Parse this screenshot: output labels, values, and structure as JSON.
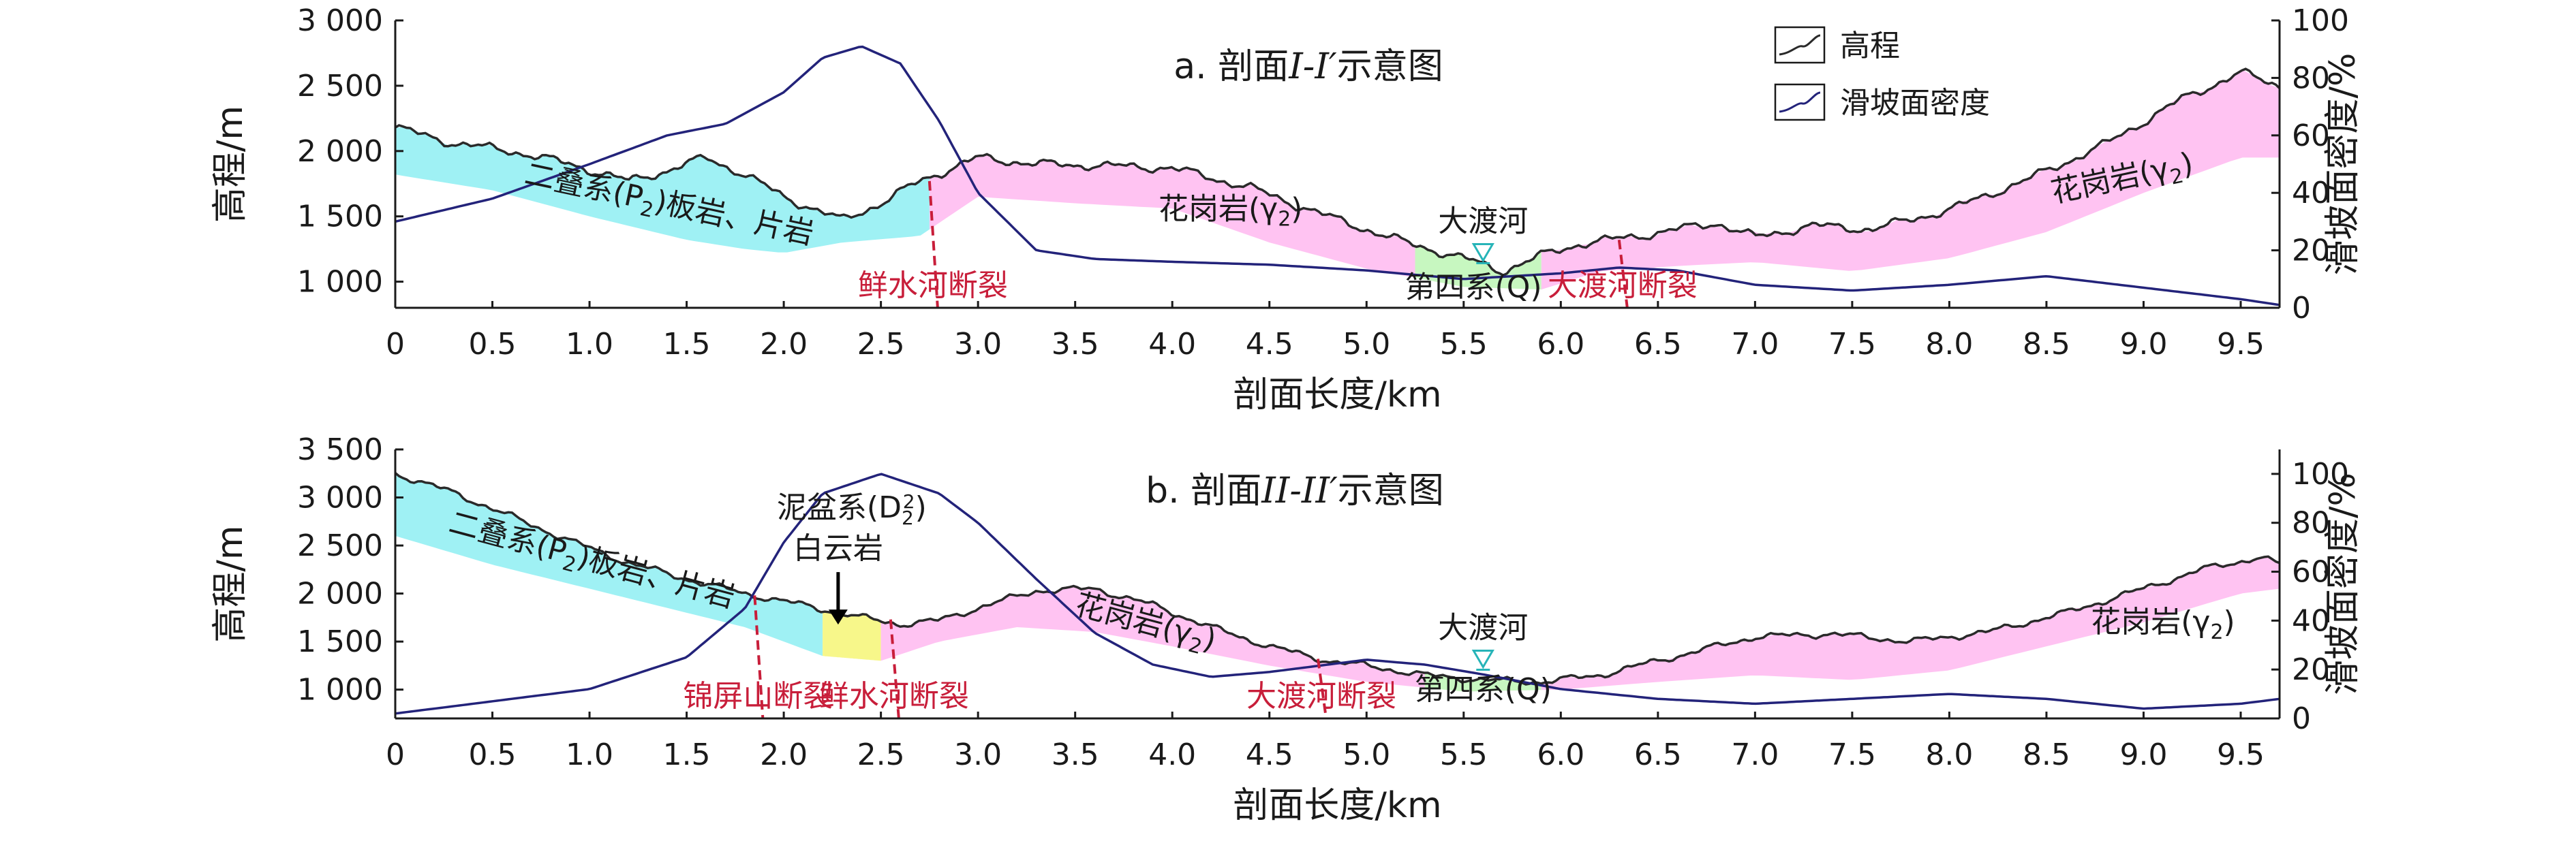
{
  "colors": {
    "cyan": "#9ff1f4",
    "pink": "#ffc3f2",
    "green": "#c7f7c0",
    "yellow": "#f7f78a",
    "fault": "#c81e3a",
    "river": "#27b4b8",
    "elevation": "#2a2a2a",
    "density": "#23237a"
  },
  "legend": {
    "elevation_label": "高程",
    "density_label": "滑坡面密度"
  },
  "chart_data": [
    {
      "type": "line",
      "title": "a. 剖面I-I′示意图",
      "title_parts": {
        "prefix": "a. 剖面",
        "italic": "I-I′",
        "suffix": "示意图"
      },
      "xlabel": "剖面长度/km",
      "ylabel": "高程/m",
      "y2label": "滑坡面密度/%",
      "xlim": [
        0,
        9.7
      ],
      "ylim": [
        800,
        3000
      ],
      "y2lim": [
        0,
        100
      ],
      "xticks": [
        0,
        0.5,
        1.0,
        1.5,
        2.0,
        2.5,
        3.0,
        3.5,
        4.0,
        4.5,
        5.0,
        5.5,
        6.0,
        6.5,
        7.0,
        7.5,
        8.0,
        8.5,
        9.0,
        9.5
      ],
      "xtick_labels": [
        "0",
        "0.5",
        "1.0",
        "1.5",
        "2.0",
        "2.5",
        "3.0",
        "3.5",
        "4.0",
        "4.5",
        "5.0",
        "5.5",
        "6.0",
        "6.5",
        "7.0",
        "7.5",
        "8.0",
        "8.5",
        "9.0",
        "9.5"
      ],
      "yticks": [
        1000,
        1500,
        2000,
        2500,
        3000
      ],
      "ytick_labels": [
        "1 000",
        "1 500",
        "2 000",
        "2 500",
        "3 000"
      ],
      "y2ticks": [
        0,
        20,
        40,
        60,
        80,
        100
      ],
      "y2tick_labels": [
        "0",
        "20",
        "40",
        "60",
        "80",
        "100"
      ],
      "series": [
        {
          "name": "高程",
          "x": [
            0,
            0.3,
            0.6,
            0.9,
            1.2,
            1.4,
            1.6,
            1.8,
            2.0,
            2.3,
            2.5,
            2.7,
            3.0,
            3.3,
            3.6,
            4.0,
            4.4,
            4.8,
            5.2,
            5.5,
            5.7,
            5.9,
            6.1,
            6.4,
            6.8,
            7.0,
            7.3,
            7.6,
            8.0,
            8.4,
            8.8,
            9.2,
            9.5,
            9.7
          ],
          "values": [
            2180,
            2060,
            2000,
            1900,
            1770,
            1850,
            1950,
            1820,
            1650,
            1470,
            1600,
            1770,
            1950,
            1900,
            1890,
            1870,
            1720,
            1500,
            1300,
            1180,
            1080,
            1200,
            1290,
            1350,
            1450,
            1340,
            1430,
            1400,
            1550,
            1780,
            2050,
            2400,
            2600,
            2500
          ]
        },
        {
          "name": "滑坡面密度",
          "x": [
            0,
            0.5,
            1.0,
            1.4,
            1.7,
            2.0,
            2.2,
            2.4,
            2.6,
            2.8,
            3.0,
            3.3,
            3.6,
            4.0,
            4.5,
            5.0,
            5.5,
            6.0,
            6.3,
            6.6,
            7.0,
            7.5,
            8.0,
            8.5,
            9.0,
            9.5,
            9.7
          ],
          "values": [
            30,
            38,
            50,
            60,
            64,
            75,
            87,
            91,
            85,
            65,
            40,
            20,
            17,
            16,
            15,
            13,
            10,
            12,
            14,
            13,
            8,
            6,
            8,
            11,
            7,
            3,
            1
          ]
        }
      ],
      "lower_boundary": {
        "x": [
          0,
          0.5,
          1.0,
          1.5,
          1.8,
          2.0,
          2.3,
          2.7,
          3.0,
          3.5,
          4.0,
          4.5,
          5.0,
          5.5,
          5.9,
          6.2,
          6.6,
          7.0,
          7.5,
          8.0,
          8.5,
          9.0,
          9.5,
          9.7
        ],
        "values": [
          1820,
          1700,
          1500,
          1320,
          1250,
          1220,
          1300,
          1350,
          1650,
          1600,
          1560,
          1300,
          1100,
          960,
          940,
          1080,
          1120,
          1150,
          1080,
          1180,
          1380,
          1680,
          1950,
          1950
        ]
      },
      "units": [
        {
          "name": "二叠系(P2)板岩、片岩",
          "x_range": [
            0,
            2.75
          ],
          "color": "cyan"
        },
        {
          "name": "花岗岩(γ2)",
          "x_range": [
            2.75,
            5.25
          ],
          "color": "pink"
        },
        {
          "name": "第四系(Q)",
          "x_range": [
            5.25,
            5.9
          ],
          "color": "green"
        },
        {
          "name": "花岗岩(γ2)",
          "x_range": [
            5.9,
            9.7
          ],
          "color": "pink"
        }
      ],
      "faults": [
        {
          "name": "鲜水河断裂",
          "x": 2.75,
          "y_top": 1770,
          "y_bottom": 800
        },
        {
          "name": "大渡河断裂",
          "x": 6.3,
          "y_top": 1320,
          "y_bottom": 800
        }
      ],
      "river": {
        "name": "大渡河",
        "x": 5.6,
        "y": 1100
      },
      "rock_labels": [
        {
          "id": "a-rock1",
          "x": 1.4,
          "y": 1520,
          "angle": 12,
          "main": "二叠系(P",
          "sub": "2",
          "rest": ")板岩、片岩"
        },
        {
          "id": "a-rock2",
          "x": 4.3,
          "y": 1480,
          "angle": 0,
          "main": "花岗岩(γ",
          "sub": "2",
          "rest": ")"
        },
        {
          "id": "a-rock3",
          "x": 5.55,
          "y": 880,
          "angle": 0,
          "main": "第四系(Q)",
          "sub": "",
          "rest": ""
        },
        {
          "id": "a-rock4",
          "x": 8.9,
          "y": 1720,
          "angle": -12,
          "main": "花岗岩(γ",
          "sub": "2",
          "rest": ")"
        }
      ]
    },
    {
      "type": "line",
      "title": "b. 剖面II-II′示意图",
      "title_parts": {
        "prefix": "b. 剖面",
        "italic": "II-II′",
        "suffix": "示意图"
      },
      "xlabel": "剖面长度/km",
      "ylabel": "高程/m",
      "y2label": "滑坡面密度/%",
      "xlim": [
        0,
        9.7
      ],
      "ylim": [
        700,
        3500
      ],
      "y2lim": [
        0,
        110
      ],
      "xticks": [
        0,
        0.5,
        1.0,
        1.5,
        2.0,
        2.5,
        3.0,
        3.5,
        4.0,
        4.5,
        5.0,
        5.5,
        6.0,
        6.5,
        7.0,
        7.5,
        8.0,
        8.5,
        9.0,
        9.5
      ],
      "xtick_labels": [
        "0",
        "0.5",
        "1.0",
        "1.5",
        "2.0",
        "2.5",
        "3.0",
        "3.5",
        "4.0",
        "4.5",
        "5.0",
        "5.5",
        "6.0",
        "6.5",
        "7.0",
        "7.5",
        "8.0",
        "8.5",
        "9.0",
        "9.5"
      ],
      "yticks": [
        1000,
        1500,
        2000,
        2500,
        3000,
        3500
      ],
      "ytick_labels": [
        "1 000",
        "1 500",
        "2 000",
        "2 500",
        "3 000",
        "3 500"
      ],
      "y2ticks": [
        0,
        20,
        40,
        60,
        80,
        100
      ],
      "y2tick_labels": [
        "0",
        "20",
        "40",
        "60",
        "80",
        "100"
      ],
      "series": [
        {
          "name": "高程",
          "x": [
            0,
            0.3,
            0.6,
            0.9,
            1.2,
            1.5,
            1.8,
            2.1,
            2.4,
            2.6,
            2.8,
            3.0,
            3.3,
            3.6,
            3.9,
            4.2,
            4.5,
            4.8,
            5.0,
            5.3,
            5.6,
            5.9,
            6.2,
            6.6,
            7.0,
            7.4,
            7.8,
            8.2,
            8.6,
            9.0,
            9.3,
            9.6,
            9.7
          ],
          "values": [
            3250,
            3050,
            2800,
            2550,
            2320,
            2150,
            2000,
            1880,
            1750,
            1680,
            1720,
            1850,
            2030,
            2050,
            1880,
            1650,
            1450,
            1300,
            1250,
            1150,
            1100,
            1080,
            1150,
            1350,
            1550,
            1580,
            1500,
            1600,
            1800,
            2050,
            2250,
            2380,
            2300
          ]
        },
        {
          "name": "滑坡面密度",
          "x": [
            0,
            0.5,
            1.0,
            1.5,
            1.8,
            2.0,
            2.2,
            2.5,
            2.8,
            3.0,
            3.3,
            3.6,
            3.9,
            4.2,
            4.5,
            4.8,
            5.0,
            5.3,
            5.6,
            6.0,
            6.5,
            7.0,
            7.5,
            8.0,
            8.5,
            9.0,
            9.5,
            9.7
          ],
          "values": [
            2,
            7,
            12,
            25,
            45,
            72,
            92,
            100,
            92,
            80,
            57,
            35,
            22,
            17,
            19,
            22,
            24,
            22,
            18,
            12,
            8,
            6,
            8,
            10,
            8,
            4,
            6,
            8
          ]
        }
      ],
      "lower_boundary": {
        "x": [
          0,
          0.5,
          1.0,
          1.5,
          1.8,
          2.2,
          2.5,
          2.8,
          3.2,
          3.6,
          4.0,
          4.5,
          5.0,
          5.5,
          6.0,
          6.5,
          7.0,
          7.5,
          8.0,
          8.5,
          9.0,
          9.5,
          9.7
        ],
        "values": [
          2600,
          2300,
          2050,
          1800,
          1650,
          1350,
          1300,
          1500,
          1650,
          1600,
          1450,
          1250,
          1080,
          980,
          1000,
          1080,
          1150,
          1100,
          1200,
          1450,
          1700,
          2000,
          2050
        ]
      },
      "units": [
        {
          "name": "二叠系(P2)板岩、片岩",
          "x_range": [
            0,
            2.2
          ],
          "color": "cyan"
        },
        {
          "name": "泥盆系(D22)白云岩",
          "x_range": [
            2.2,
            2.5
          ],
          "color": "yellow"
        },
        {
          "name": "花岗岩(γ2)",
          "x_range": [
            2.5,
            5.3
          ],
          "color": "pink"
        },
        {
          "name": "第四系(Q)",
          "x_range": [
            5.3,
            5.9
          ],
          "color": "green"
        },
        {
          "name": "花岗岩(γ2)",
          "x_range": [
            5.9,
            9.7
          ],
          "color": "pink"
        }
      ],
      "faults": [
        {
          "name": "锦屏山断裂",
          "x": 1.85,
          "y_top": 1980,
          "y_bottom": 700
        },
        {
          "name": "鲜水河断裂",
          "x": 2.55,
          "y_top": 1730,
          "y_bottom": 700
        },
        {
          "name": "大渡河断裂",
          "x": 4.75,
          "y_top": 1320,
          "y_bottom": 700
        }
      ],
      "river": {
        "name": "大渡河",
        "x": 5.6,
        "y": 1150
      },
      "dolomite_label": {
        "line1_main": "泥盆系(D",
        "line1_sub": "2",
        "line1_sup": "2",
        "line1_rest": ")",
        "line2": "白云岩",
        "x": 2.35,
        "y": 2400
      },
      "rock_labels": [
        {
          "id": "b-rock1",
          "x": 1.0,
          "y": 2250,
          "angle": 15,
          "main": "二叠系(P",
          "sub": "2",
          "rest": ")板岩、片岩"
        },
        {
          "id": "b-rock2",
          "x": 3.85,
          "y": 1600,
          "angle": 15,
          "main": "花岗岩(γ",
          "sub": "2",
          "rest": ")"
        },
        {
          "id": "b-rock3",
          "x": 5.6,
          "y": 900,
          "angle": 0,
          "main": "第四系(Q)",
          "sub": "",
          "rest": ""
        },
        {
          "id": "b-rock4",
          "x": 9.1,
          "y": 1600,
          "angle": 0,
          "main": "花岗岩(γ",
          "sub": "2",
          "rest": ")"
        }
      ]
    }
  ]
}
